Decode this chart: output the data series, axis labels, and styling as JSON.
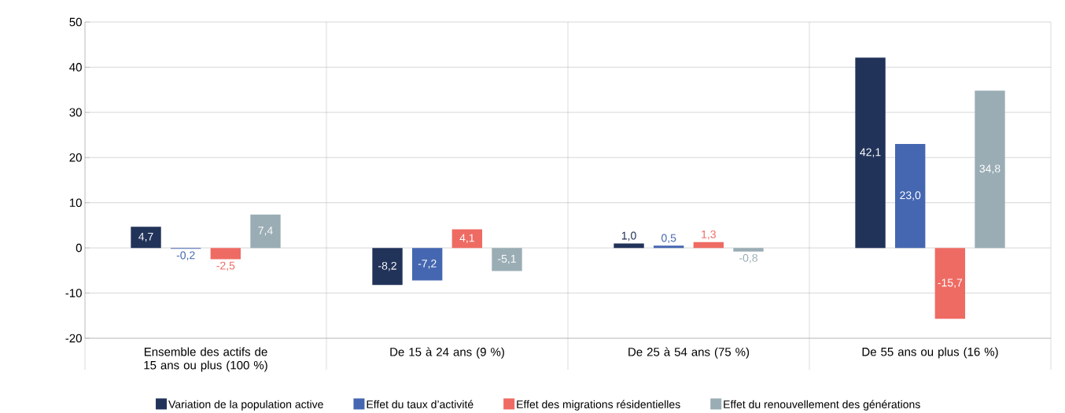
{
  "chart_data": {
    "type": "bar",
    "categories": [
      "Ensemble des actifs de 15 ans ou plus (100 %)",
      "De 15 à 24 ans (9 %)",
      "De 25 à 54 ans (75 %)",
      "De 55 ans ou plus (16 %)"
    ],
    "series": [
      {
        "name": "Variation de la population active",
        "color": "#22335a",
        "values": [
          4.7,
          -8.2,
          1.0,
          42.1
        ],
        "value_labels": [
          "4,7",
          "-8,2",
          "1,0",
          "42,1"
        ]
      },
      {
        "name": "Effet du taux d’activité",
        "color": "#4567b1",
        "values": [
          -0.2,
          -7.2,
          0.5,
          23.0
        ],
        "value_labels": [
          "-0,2",
          "-7,2",
          "0,5",
          "23,0"
        ]
      },
      {
        "name": "Effet des migrations résidentielles",
        "color": "#ee6b63",
        "values": [
          -2.5,
          4.1,
          1.3,
          -15.7
        ],
        "value_labels": [
          "-2,5",
          "4,1",
          "1,3",
          "-15,7"
        ]
      },
      {
        "name": "Effet du renouvellement des générations",
        "color": "#9aadb4",
        "values": [
          7.4,
          -5.1,
          -0.8,
          34.8
        ],
        "value_labels": [
          "7,4",
          "-5,1",
          "-0,8",
          "34,8"
        ]
      }
    ],
    "ylim": [
      -20,
      50
    ],
    "yticks": [
      -20,
      -10,
      0,
      10,
      20,
      30,
      40,
      50
    ],
    "grid": "y",
    "legend": "bottom"
  }
}
